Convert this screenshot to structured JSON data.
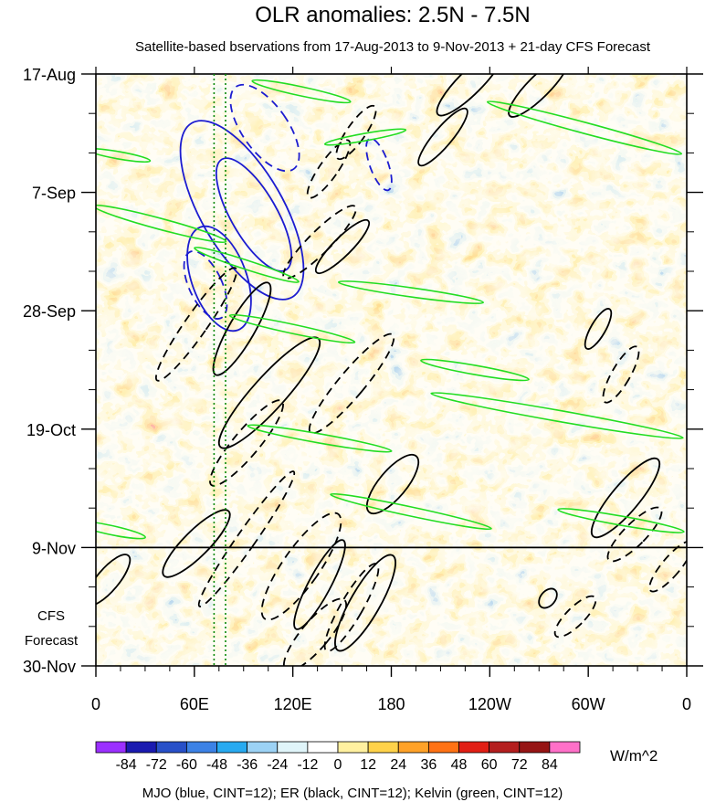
{
  "chart_data": {
    "type": "heatmap",
    "title": "OLR anomalies: 2.5N - 7.5N",
    "subtitle": "Satellite-based bservations from 17-Aug-2013 to 9-Nov-2013 + 21-day CFS Forecast",
    "x_ticks": [
      "0",
      "60E",
      "120E",
      "180",
      "120W",
      "60W",
      "0"
    ],
    "x_tick_lon": [
      0,
      60,
      120,
      180,
      240,
      300,
      360
    ],
    "y_ticks": [
      "17-Aug",
      "7-Sep",
      "28-Sep",
      "19-Oct",
      "9-Nov",
      "30-Nov"
    ],
    "y_tick_day": [
      0,
      21,
      42,
      63,
      84,
      105
    ],
    "forecast_start_day": 84,
    "forecast_label_line1": "CFS",
    "forecast_label_line2": "Forecast",
    "reference_longitudes": [
      72,
      79
    ],
    "colorbar": {
      "levels": [
        "-84",
        "-72",
        "-60",
        "-48",
        "-36",
        "-24",
        "-12",
        "0",
        "12",
        "24",
        "36",
        "48",
        "60",
        "72",
        "84"
      ],
      "colors": [
        "#9b30ff",
        "#1a1ab0",
        "#2850c8",
        "#3c82e6",
        "#28aaf0",
        "#9cd2f5",
        "#e0f5fa",
        "#ffffff",
        "#fff0a0",
        "#ffd24a",
        "#ffa228",
        "#ff7214",
        "#e11e14",
        "#b41e1e",
        "#961414",
        "#ff70c8"
      ],
      "units": "W/m^2"
    },
    "footer": "MJO (blue, CINT=12); ER (black, CINT=12); Kelvin (green, CINT=12)",
    "contour_colors": {
      "mjo": "#1c1cd0",
      "er": "#000000",
      "kelvin": "#22dd22"
    }
  }
}
